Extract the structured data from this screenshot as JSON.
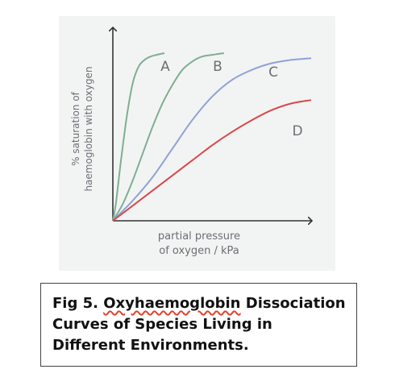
{
  "chart_data": {
    "type": "line",
    "ylabel": [
      "% saturation of",
      "haemoglobin with oxygen"
    ],
    "xlabel": [
      "partial pressure",
      "of oxygen / kPa"
    ],
    "xlim": [
      0,
      10
    ],
    "ylim": [
      0,
      100
    ],
    "grid": false,
    "legend": "none",
    "series": [
      {
        "name": "A",
        "color": "#7fae94",
        "x": [
          0,
          0.15,
          0.4,
          0.7,
          1.0,
          1.3,
          1.6,
          1.9,
          2.2,
          2.6
        ],
        "y": [
          0,
          10,
          35,
          62,
          82,
          92,
          96,
          98,
          99,
          100
        ]
      },
      {
        "name": "B",
        "color": "#7fae94",
        "x": [
          0,
          0.5,
          1.0,
          1.5,
          2.0,
          2.5,
          3.0,
          3.5,
          4.0,
          4.5,
          5.0,
          5.6
        ],
        "y": [
          0,
          10,
          24,
          40,
          56,
          70,
          81,
          90,
          95,
          98,
          99,
          100
        ]
      },
      {
        "name": "C",
        "color": "#8fa1d6",
        "x": [
          0,
          1,
          2,
          3,
          4,
          5,
          6,
          7,
          8,
          9,
          10
        ],
        "y": [
          0,
          12,
          26,
          43,
          60,
          74,
          84,
          90,
          94,
          96,
          97
        ]
      },
      {
        "name": "D",
        "color": "#d9474a",
        "x": [
          0,
          1,
          2,
          3,
          4,
          5,
          6,
          7,
          8,
          9,
          10
        ],
        "y": [
          0,
          9,
          18,
          27,
          36,
          45,
          53,
          60,
          66,
          70,
          72
        ]
      }
    ]
  },
  "caption": {
    "prefix": "Fig 5. ",
    "underlined_word": "Oxyhaemoglobin",
    "rest": " Dissociation Curves of Species Living in Different Environments."
  },
  "colors": {
    "panel_background": "#f2f4f3",
    "axis": "#333333",
    "label_text": "#6a6f74",
    "spellcheck_underline": "#e0442d"
  }
}
